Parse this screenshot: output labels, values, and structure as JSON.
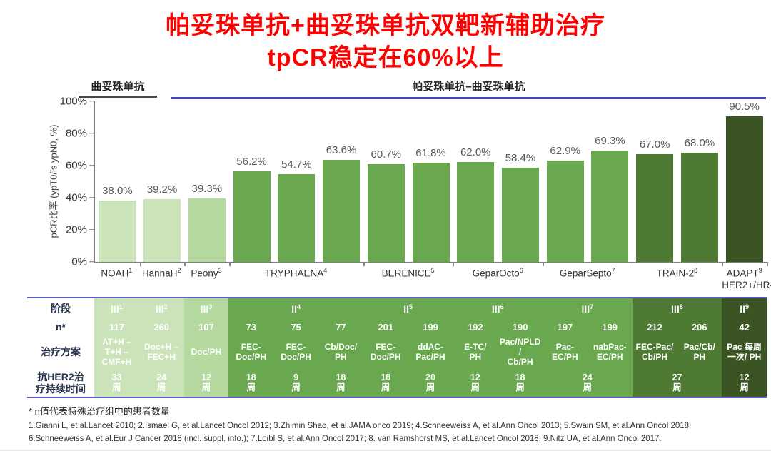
{
  "title": {
    "line1": "帕妥珠单抗+曲妥珠单抗双靶新辅助治疗",
    "line2": "tpCR稳定在60%以上",
    "color": "#fe0000"
  },
  "group_headers": {
    "trastuzumab": "曲妥珠单抗",
    "pertuzumab_trastuzumab": "帕妥珠单抗–曲妥珠单抗"
  },
  "chart_data": {
    "type": "bar",
    "ylabel": "pCR比率 (ypT0/is ypN0, %)",
    "ylim": [
      0,
      100
    ],
    "yticks": [
      "100%",
      "80%",
      "60%",
      "40%",
      "20%",
      "0%"
    ],
    "grid": false,
    "legend": "none",
    "colors": {
      "light": "#cbe3b9",
      "peony": "#b5d99e",
      "mid": "#69a84e",
      "dark": "#4e7a33",
      "darkest": "#3a5423"
    },
    "groups": [
      {
        "trial": "NOAH",
        "sup": "1",
        "bars": [
          {
            "value": 38.0,
            "label": "38.0%",
            "color": "light"
          }
        ]
      },
      {
        "trial": "HannaH",
        "sup": "2",
        "bars": [
          {
            "value": 39.2,
            "label": "39.2%",
            "color": "light"
          }
        ]
      },
      {
        "trial": "Peony",
        "sup": "3",
        "bars": [
          {
            "value": 39.3,
            "label": "39.3%",
            "color": "peony"
          }
        ]
      },
      {
        "trial": "TRYPHAENA",
        "sup": "4",
        "bars": [
          {
            "value": 56.2,
            "label": "56.2%",
            "color": "mid"
          },
          {
            "value": 54.7,
            "label": "54.7%",
            "color": "mid"
          },
          {
            "value": 63.6,
            "label": "63.6%",
            "color": "mid"
          }
        ]
      },
      {
        "trial": "BERENICE",
        "sup": "5",
        "bars": [
          {
            "value": 60.7,
            "label": "60.7%",
            "color": "mid"
          },
          {
            "value": 61.8,
            "label": "61.8%",
            "color": "mid"
          }
        ]
      },
      {
        "trial": "GeparOcto",
        "sup": "6",
        "bars": [
          {
            "value": 62.0,
            "label": "62.0%",
            "color": "mid"
          },
          {
            "value": 58.4,
            "label": "58.4%",
            "color": "mid"
          }
        ]
      },
      {
        "trial": "GeparSepto",
        "sup": "7",
        "bars": [
          {
            "value": 62.9,
            "label": "62.9%",
            "color": "mid"
          },
          {
            "value": 69.3,
            "label": "69.3%",
            "color": "mid"
          }
        ]
      },
      {
        "trial": "TRAIN-2",
        "sup": "8",
        "bars": [
          {
            "value": 67.0,
            "label": "67.0%",
            "color": "dark"
          },
          {
            "value": 68.0,
            "label": "68.0%",
            "color": "dark"
          }
        ]
      },
      {
        "trial": "ADAPT",
        "sup": "9",
        "sub": "HER2+/HR–",
        "bars": [
          {
            "value": 90.5,
            "label": "90.5%",
            "color": "darkest"
          }
        ]
      }
    ]
  },
  "table": {
    "row_labels": [
      "阶段",
      "n*",
      "治疗方案",
      "抗HER2治\n疗持续时间"
    ],
    "column_colors": [
      "light",
      "light",
      "peony",
      "mid",
      "mid",
      "mid",
      "mid",
      "mid",
      "mid",
      "mid",
      "mid",
      "mid",
      "dark",
      "dark",
      "darkest"
    ],
    "phases": [
      {
        "label": "III",
        "sup": "1",
        "span": 1
      },
      {
        "label": "III",
        "sup": "2",
        "span": 1
      },
      {
        "label": "III",
        "sup": "3",
        "span": 1
      },
      {
        "label": "II",
        "sup": "4",
        "span": 3
      },
      {
        "label": "II",
        "sup": "5",
        "span": 2
      },
      {
        "label": "III",
        "sup": "6",
        "span": 2
      },
      {
        "label": "III",
        "sup": "7",
        "span": 2
      },
      {
        "label": "III",
        "sup": "8",
        "span": 2
      },
      {
        "label": "II",
        "sup": "9",
        "span": 1
      }
    ],
    "n_values": [
      "117",
      "260",
      "107",
      "73",
      "75",
      "77",
      "201",
      "199",
      "192",
      "190",
      "197",
      "199",
      "212",
      "206",
      "42"
    ],
    "regimens": [
      "AT+H –\nT+H –\nCMF+H",
      "Doc+H –\nFEC+H",
      "Doc/PH",
      "FEC-\nDoc/PH",
      "FEC-\nDoc/PH",
      "Cb/Doc/\nPH",
      "FEC-\nDoc/PH",
      "ddAC-\nPac/PH",
      "E-TC/\nPH",
      "Pac/NPLD\n/\nCb/PH",
      "Pac-\nEC/PH",
      "nabPac-\nEC/PH",
      "FEC-Pac/\nCb/PH",
      "Pac/Cb/\nPH",
      "Pac 每周\n一次/ PH"
    ],
    "durations": [
      {
        "text": "33\n周",
        "span": 1
      },
      {
        "text": "24\n周",
        "span": 1
      },
      {
        "text": "12\n周",
        "span": 1
      },
      {
        "text": "18\n周",
        "span": 1
      },
      {
        "text": "9\n周",
        "span": 1
      },
      {
        "text": "18\n周",
        "span": 1
      },
      {
        "text": "18\n周",
        "span": 1
      },
      {
        "text": "20\n周",
        "span": 1
      },
      {
        "text": "12\n周",
        "span": 1
      },
      {
        "text": "18\n周",
        "span": 1
      },
      {
        "text": "24\n周",
        "span": 2
      },
      {
        "text": "27\n周",
        "span": 2
      },
      {
        "text": "12\n周",
        "span": 1
      }
    ]
  },
  "footnotes": {
    "note": "* n值代表特殊治疗组中的患者数量",
    "refs_line1": "1.Gianni L, et al.Lancet 2010; 2.Ismael G, et al.Lancet Oncol 2012; 3.Zhimin Shao, et al.JAMA onco 2019; 4.Schneeweiss A, et al.Ann Oncol 2013; 5.Swain SM, et al.Ann Oncol 2018;",
    "refs_line2": "6.Schneeweiss A, et al.Eur J Cancer 2018 (incl. suppl. info.); 7.Loibl S, et al.Ann Oncol 2017; 8. van Ramshorst MS, et al.Lancet Oncol 2018; 9.Nitz UA, et al.Ann Oncol 2017."
  }
}
